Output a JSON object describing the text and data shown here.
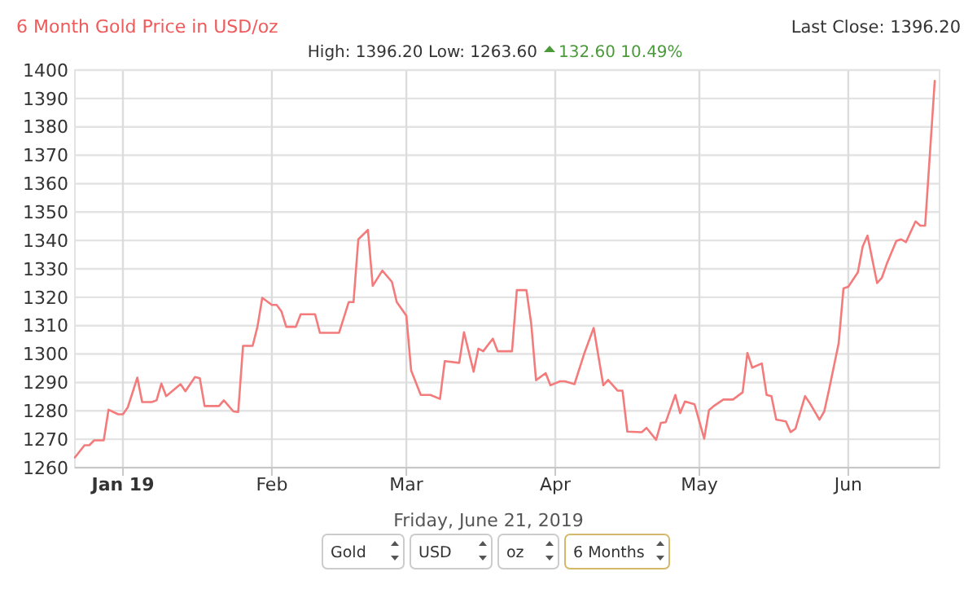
{
  "chart_data": {
    "type": "line",
    "title": "6 Month Gold Price in USD/oz",
    "subtitle": "High: 1396.20 Low: 1263.60",
    "annotations": [
      "132.60 10.49%",
      "Last Close: 1396.20",
      "Friday, June 21, 2019",
      "Gold",
      "USD",
      "oz",
      "6 Months"
    ],
    "x": [
      "2018-12-22",
      "2018-12-24",
      "2018-12-25",
      "2018-12-26",
      "2018-12-28",
      "2018-12-29",
      "2018-12-31",
      "2019-01-01",
      "2019-01-02",
      "2019-01-04",
      "2019-01-05",
      "2019-01-07",
      "2019-01-08",
      "2019-01-09",
      "2019-01-10",
      "2019-01-13",
      "2019-01-14",
      "2019-01-16",
      "2019-01-17",
      "2019-01-18",
      "2019-01-21",
      "2019-01-22",
      "2019-01-24",
      "2019-01-25",
      "2019-01-26",
      "2019-01-28",
      "2019-01-29",
      "2019-01-30",
      "2019-02-01",
      "2019-02-02",
      "2019-02-03",
      "2019-02-04",
      "2019-02-06",
      "2019-02-07",
      "2019-02-10",
      "2019-02-11",
      "2019-02-15",
      "2019-02-17",
      "2019-02-18",
      "2019-02-19",
      "2019-02-21",
      "2019-02-22",
      "2019-02-24",
      "2019-02-26",
      "2019-02-27",
      "2019-03-01",
      "2019-03-02",
      "2019-03-04",
      "2019-03-06",
      "2019-03-08",
      "2019-03-09",
      "2019-03-12",
      "2019-03-13",
      "2019-03-15",
      "2019-03-16",
      "2019-03-17",
      "2019-03-19",
      "2019-03-20",
      "2019-03-23",
      "2019-03-24",
      "2019-03-26",
      "2019-03-27",
      "2019-03-28",
      "2019-03-30",
      "2019-03-31",
      "2019-04-02",
      "2019-04-03",
      "2019-04-05",
      "2019-04-07",
      "2019-04-09",
      "2019-04-11",
      "2019-04-12",
      "2019-04-14",
      "2019-04-15",
      "2019-04-16",
      "2019-04-19",
      "2019-04-20",
      "2019-04-22",
      "2019-04-23",
      "2019-04-24",
      "2019-04-26",
      "2019-04-27",
      "2019-04-28",
      "2019-04-30",
      "2019-05-02",
      "2019-05-03",
      "2019-05-04",
      "2019-05-06",
      "2019-05-08",
      "2019-05-10",
      "2019-05-11",
      "2019-05-12",
      "2019-05-14",
      "2019-05-15",
      "2019-05-16",
      "2019-05-17",
      "2019-05-19",
      "2019-05-20",
      "2019-05-21",
      "2019-05-23",
      "2019-05-24",
      "2019-05-26",
      "2019-05-27",
      "2019-05-28",
      "2019-05-30",
      "2019-05-31",
      "2019-06-01",
      "2019-06-03",
      "2019-06-04",
      "2019-06-05",
      "2019-06-07",
      "2019-06-08",
      "2019-06-09",
      "2019-06-11",
      "2019-06-12",
      "2019-06-13",
      "2019-06-15",
      "2019-06-16",
      "2019-06-17",
      "2019-06-19"
    ],
    "series": [
      {
        "color": "#f47b7b",
        "values": [
          1263.6,
          1267.9,
          1267.9,
          1269.6,
          1269.6,
          1280.4,
          1278.8,
          1278.8,
          1281.2,
          1291.7,
          1283.1,
          1283.1,
          1283.7,
          1289.6,
          1285.2,
          1289.4,
          1286.9,
          1291.9,
          1291.5,
          1281.7,
          1281.7,
          1283.7,
          1279.8,
          1279.6,
          1302.9,
          1302.9,
          1309.6,
          1319.8,
          1317.3,
          1317.3,
          1315,
          1309.6,
          1309.6,
          1314,
          1314,
          1307.5,
          1307.5,
          1318.3,
          1318.3,
          1340.4,
          1343.7,
          1324,
          1329.4,
          1325.4,
          1318.3,
          1313.5,
          1294.2,
          1285.6,
          1285.6,
          1284.2,
          1297.5,
          1296.9,
          1307.7,
          1293.8,
          1301.9,
          1301,
          1305.4,
          1301,
          1301,
          1322.5,
          1322.5,
          1310.6,
          1290.8,
          1293.3,
          1289,
          1290.4,
          1290.4,
          1289.4,
          1300,
          1309.2,
          1289,
          1290.9,
          1287.1,
          1287.1,
          1272.7,
          1272.5,
          1274,
          1269.8,
          1275.8,
          1276,
          1285.6,
          1279.2,
          1283.3,
          1282.3,
          1270.2,
          1280.2,
          1281.7,
          1284,
          1284,
          1286.5,
          1300.4,
          1295.2,
          1296.7,
          1285.6,
          1285.2,
          1276.9,
          1276.3,
          1272.5,
          1273.7,
          1285.2,
          1282.7,
          1276.9,
          1279.8,
          1287.5,
          1303.8,
          1323.1,
          1323.7,
          1328.8,
          1337.9,
          1341.7,
          1325,
          1326.9,
          1331.7,
          1339.8,
          1340.4,
          1339.4,
          1346.7,
          1345.2,
          1345.2,
          1396.2
        ]
      }
    ],
    "xlim": [
      "2018-12-22",
      "2019-06-20"
    ],
    "xticks": [
      {
        "value": "2019-01-01",
        "label": "Jan 19"
      },
      {
        "value": "2019-02-01",
        "label": "Feb"
      },
      {
        "value": "2019-03-01",
        "label": "Mar"
      },
      {
        "value": "2019-04-01",
        "label": "Apr"
      },
      {
        "value": "2019-05-01",
        "label": "May"
      },
      {
        "value": "2019-06-01",
        "label": "Jun"
      }
    ],
    "ylim": [
      1260,
      1400
    ],
    "yticks": [
      1260,
      1270,
      1280,
      1290,
      1300,
      1310,
      1320,
      1330,
      1340,
      1350,
      1360,
      1370,
      1380,
      1390,
      1400
    ],
    "grid": true,
    "marker": "none",
    "line_style": "solid"
  }
}
